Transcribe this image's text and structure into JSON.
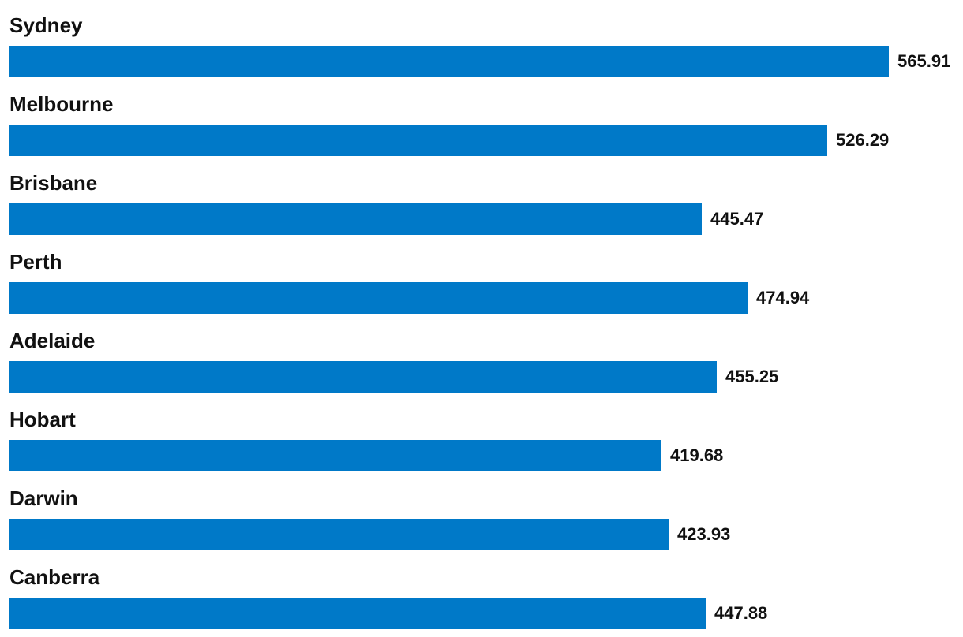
{
  "chart_data": {
    "type": "bar",
    "orientation": "horizontal",
    "categories": [
      "Sydney",
      "Melbourne",
      "Brisbane",
      "Perth",
      "Adelaide",
      "Hobart",
      "Darwin",
      "Canberra"
    ],
    "values": [
      565.91,
      526.29,
      445.47,
      474.94,
      455.25,
      419.68,
      423.93,
      447.88
    ],
    "value_labels": [
      "565.91",
      "526.29",
      "445.47",
      "474.94",
      "455.25",
      "419.68",
      "423.93",
      "447.88"
    ],
    "xlim": [
      0,
      565.91
    ],
    "grid": false,
    "legend": "none",
    "bar_color": "#0079C8",
    "label_color": "#111111"
  }
}
